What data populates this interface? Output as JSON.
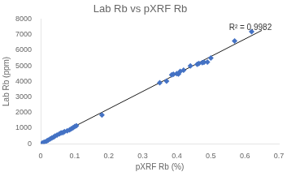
{
  "chart_data": {
    "type": "scatter",
    "title": "Lab Rb vs pXRF Rb",
    "xlabel": "pXRF Rb (%)",
    "ylabel": "Lab Rb (ppm)",
    "annotation": "R² = 0.9982",
    "x": [
      0.004,
      0.008,
      0.012,
      0.018,
      0.022,
      0.028,
      0.033,
      0.038,
      0.042,
      0.048,
      0.055,
      0.06,
      0.065,
      0.07,
      0.078,
      0.085,
      0.09,
      0.095,
      0.1,
      0.105,
      0.18,
      0.35,
      0.37,
      0.385,
      0.39,
      0.4,
      0.405,
      0.41,
      0.42,
      0.44,
      0.46,
      0.465,
      0.475,
      0.48,
      0.49,
      0.5,
      0.57,
      0.62
    ],
    "values": [
      30,
      80,
      120,
      180,
      230,
      310,
      380,
      430,
      490,
      560,
      630,
      700,
      720,
      780,
      830,
      900,
      960,
      1020,
      1100,
      1150,
      1850,
      3920,
      4020,
      4430,
      4460,
      4500,
      4480,
      4650,
      4720,
      5000,
      5100,
      5150,
      5200,
      5230,
      5250,
      5500,
      6600,
      7200
    ],
    "color": "#4472C4",
    "marker": "diamond",
    "trendline": {
      "x": [
        0.0,
        0.65
      ],
      "values": [
        0,
        7280
      ],
      "color": "#1a1a1a"
    },
    "xlim": [
      0,
      0.7
    ],
    "ylim": [
      0,
      8000
    ],
    "xticks": [
      0,
      0.1,
      0.2,
      0.3,
      0.4,
      0.5,
      0.6,
      0.7
    ],
    "yticks": [
      0,
      1000,
      2000,
      3000,
      4000,
      5000,
      6000,
      7000,
      8000
    ],
    "grid": false
  }
}
